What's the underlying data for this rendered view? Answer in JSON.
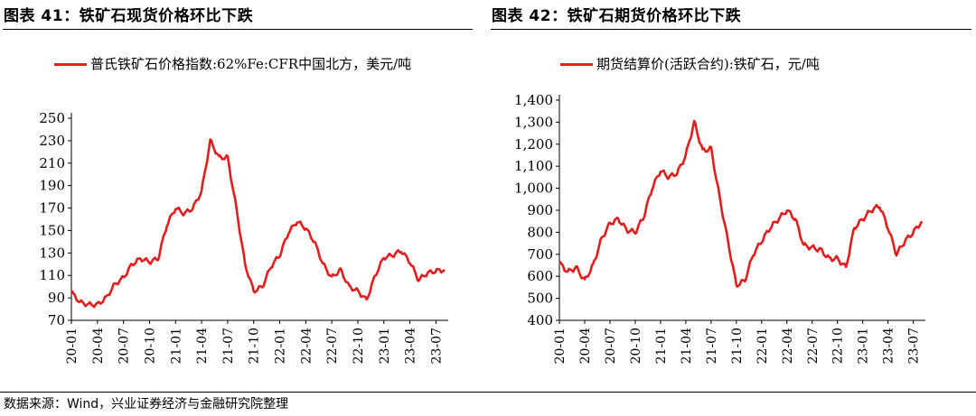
{
  "left": {
    "title": "图表 41：铁矿石现货价格环比下跌",
    "chart_data": {
      "type": "line",
      "legend": "普氏铁矿石价格指数:62%Fe:CFR中国北方，美元/吨",
      "ylim": [
        70,
        250
      ],
      "yticks": [
        "70",
        "90",
        "110",
        "130",
        "150",
        "170",
        "190",
        "210",
        "230",
        "250"
      ],
      "xticks": [
        "20-01",
        "20-04",
        "20-07",
        "20-10",
        "21-01",
        "21-04",
        "21-07",
        "21-10",
        "22-01",
        "22-04",
        "22-07",
        "22-10",
        "23-01",
        "23-04",
        "23-07"
      ],
      "color": "#e21d1d",
      "series": [
        {
          "x": [
            "20-01",
            "20-02",
            "20-03",
            "20-04",
            "20-05",
            "20-06",
            "20-07",
            "20-08",
            "20-09",
            "20-10",
            "20-11",
            "20-12",
            "21-01",
            "21-02",
            "21-03",
            "21-04",
            "21-05",
            "21-06",
            "21-07",
            "21-08",
            "21-09",
            "21-10",
            "21-11",
            "21-12",
            "22-01",
            "22-02",
            "22-03",
            "22-04",
            "22-05",
            "22-06",
            "22-07",
            "22-08",
            "22-09",
            "22-10",
            "22-11",
            "22-12",
            "23-01",
            "23-02",
            "23-03",
            "23-04",
            "23-05",
            "23-06",
            "23-07",
            "23-08"
          ],
          "values": [
            95,
            86,
            84,
            84,
            90,
            102,
            108,
            120,
            125,
            122,
            125,
            155,
            170,
            165,
            170,
            185,
            230,
            215,
            215,
            170,
            120,
            96,
            100,
            118,
            128,
            148,
            158,
            152,
            140,
            120,
            108,
            115,
            100,
            96,
            88,
            110,
            126,
            128,
            132,
            122,
            106,
            112,
            114,
            115
          ]
        }
      ]
    }
  },
  "right": {
    "title": "图表 42：铁矿石期货价格环比下跌",
    "chart_data": {
      "type": "line",
      "legend": "期货结算价(活跃合约):铁矿石，元/吨",
      "ylim": [
        400,
        1400
      ],
      "yticks": [
        "400",
        "500",
        "600",
        "700",
        "800",
        "900",
        "1,000",
        "1,100",
        "1,200",
        "1,300",
        "1,400"
      ],
      "xticks": [
        "20-01",
        "20-04",
        "20-07",
        "20-10",
        "21-01",
        "21-04",
        "21-07",
        "21-10",
        "22-01",
        "22-04",
        "22-07",
        "22-10",
        "23-01",
        "23-04",
        "23-07"
      ],
      "color": "#e21d1d",
      "series": [
        {
          "x": [
            "20-01",
            "20-02",
            "20-03",
            "20-04",
            "20-05",
            "20-06",
            "20-07",
            "20-08",
            "20-09",
            "20-10",
            "20-11",
            "20-12",
            "21-01",
            "21-02",
            "21-03",
            "21-04",
            "21-05",
            "21-06",
            "21-07",
            "21-08",
            "21-09",
            "21-10",
            "21-11",
            "21-12",
            "22-01",
            "22-02",
            "22-03",
            "22-04",
            "22-05",
            "22-06",
            "22-07",
            "22-08",
            "22-09",
            "22-10",
            "22-11",
            "22-12",
            "23-01",
            "23-02",
            "23-03",
            "23-04",
            "23-05",
            "23-06",
            "23-07",
            "23-08"
          ],
          "values": [
            660,
            620,
            640,
            580,
            650,
            770,
            840,
            860,
            810,
            800,
            870,
            1000,
            1080,
            1050,
            1070,
            1150,
            1300,
            1170,
            1180,
            960,
            760,
            560,
            580,
            700,
            760,
            820,
            860,
            900,
            860,
            740,
            730,
            720,
            680,
            680,
            640,
            820,
            860,
            900,
            920,
            820,
            700,
            760,
            800,
            850
          ]
        }
      ]
    }
  },
  "footer": {
    "source": "数据来源：Wind，兴业证券经济与金融研究院整理"
  }
}
